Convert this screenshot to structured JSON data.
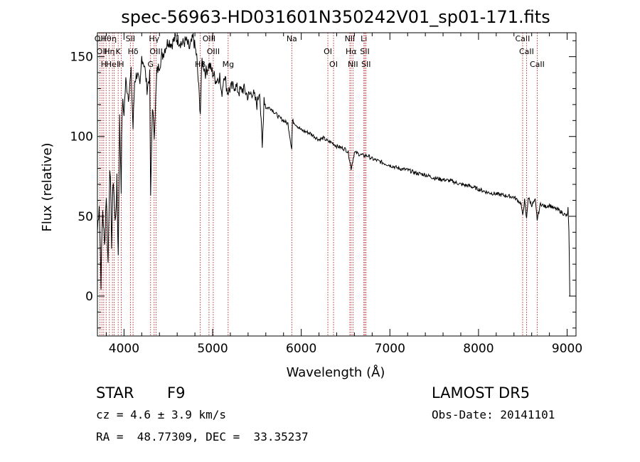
{
  "chart_data": {
    "type": "line",
    "title": "spec-56963-HD031601N350242V01_sp01-171.fits",
    "xlabel": "Wavelength (Å)",
    "ylabel": "Flux (relative)",
    "xlim": [
      3700,
      9100
    ],
    "ylim": [
      -25,
      165
    ],
    "x_ticks": [
      4000,
      5000,
      6000,
      7000,
      8000,
      9000
    ],
    "y_ticks": [
      0,
      50,
      100,
      150
    ],
    "series": [
      {
        "x": [
          3700,
          3720,
          3740,
          3760,
          3780,
          3800,
          3820,
          3840,
          3860,
          3880,
          3900,
          3920,
          3935,
          3950,
          3968,
          3980,
          4000,
          4020,
          4050,
          4080,
          4102,
          4120,
          4150,
          4180,
          4200,
          4230,
          4260,
          4290,
          4300,
          4320,
          4340,
          4370,
          4400,
          4430,
          4460,
          4500,
          4540,
          4580,
          4620,
          4660,
          4700,
          4740,
          4780,
          4820,
          4861,
          4880,
          4920,
          4960,
          5000,
          5040,
          5080,
          5100,
          5130,
          5167,
          5200,
          5250,
          5300,
          5350,
          5400,
          5450,
          5500,
          5530,
          5560,
          5580,
          5600,
          5650,
          5700,
          5750,
          5800,
          5850,
          5893,
          5900,
          5950,
          6000,
          6050,
          6100,
          6150,
          6200,
          6250,
          6300,
          6350,
          6400,
          6450,
          6500,
          6530,
          6563,
          6600,
          6650,
          6700,
          6750,
          6800,
          6850,
          6900,
          6950,
          7000,
          7100,
          7200,
          7300,
          7400,
          7500,
          7600,
          7700,
          7800,
          7900,
          8000,
          8100,
          8200,
          8300,
          8400,
          8480,
          8498,
          8520,
          8542,
          8560,
          8600,
          8640,
          8662,
          8700,
          8750,
          8800,
          8850,
          8900,
          8950,
          9000,
          9010,
          9020,
          9030
        ],
        "y": [
          40,
          60,
          10,
          55,
          30,
          65,
          20,
          85,
          35,
          75,
          45,
          70,
          25,
          110,
          70,
          120,
          115,
          135,
          125,
          140,
          105,
          135,
          140,
          130,
          150,
          145,
          130,
          138,
          60,
          120,
          100,
          140,
          145,
          150,
          155,
          160,
          158,
          162,
          160,
          158,
          160,
          155,
          162,
          150,
          115,
          148,
          140,
          145,
          140,
          135,
          138,
          125,
          140,
          128,
          130,
          132,
          128,
          130,
          125,
          128,
          120,
          130,
          92,
          125,
          118,
          118,
          115,
          112,
          110,
          108,
          92,
          110,
          107,
          104,
          103,
          102,
          100,
          98,
          99,
          97,
          96,
          94,
          93,
          92,
          90,
          80,
          90,
          89,
          88,
          88,
          86,
          85,
          84,
          83,
          82,
          80,
          79,
          77,
          76,
          74,
          73,
          72,
          70,
          69,
          67,
          65,
          64,
          63,
          62,
          58,
          50,
          60,
          48,
          62,
          57,
          60,
          48,
          58,
          56,
          57,
          55,
          54,
          52,
          50,
          55,
          40,
          0
        ]
      }
    ],
    "line_markers": [
      {
        "x": 3727,
        "label": "OII"
      },
      {
        "x": 3750,
        "label": "OII"
      },
      {
        "x": 3771,
        "label": "H"
      },
      {
        "x": 3798,
        "label": "Hθ"
      },
      {
        "x": 3835,
        "label": "Hη"
      },
      {
        "x": 3869,
        "label": "HeI"
      },
      {
        "x": 3889,
        "label": "η"
      },
      {
        "x": 3934,
        "label": "K"
      },
      {
        "x": 3968,
        "label": "H"
      },
      {
        "x": 4072,
        "label": "SII"
      },
      {
        "x": 4102,
        "label": "Hδ"
      },
      {
        "x": 4300,
        "label": "G"
      },
      {
        "x": 4340,
        "label": "Hγ"
      },
      {
        "x": 4363,
        "label": "OIII"
      },
      {
        "x": 4861,
        "label": "Hβ"
      },
      {
        "x": 4959,
        "label": "OIII"
      },
      {
        "x": 5007,
        "label": "OIII"
      },
      {
        "x": 5175,
        "label": "Mg"
      },
      {
        "x": 5893,
        "label": "Na"
      },
      {
        "x": 6300,
        "label": "OI"
      },
      {
        "x": 6364,
        "label": "OI"
      },
      {
        "x": 6548,
        "label": "NII"
      },
      {
        "x": 6563,
        "label": "Hα"
      },
      {
        "x": 6583,
        "label": "NII"
      },
      {
        "x": 6707,
        "label": "Li"
      },
      {
        "x": 6717,
        "label": "SII"
      },
      {
        "x": 6731,
        "label": "SII"
      },
      {
        "x": 8498,
        "label": "CaII"
      },
      {
        "x": 8542,
        "label": "CaII"
      },
      {
        "x": 8662,
        "label": "CaII"
      }
    ],
    "grid": false
  },
  "info": {
    "class": "STAR",
    "subclass": "F9",
    "survey": "LAMOST DR5",
    "cz": "cz = 4.6 ± 3.9 km/s",
    "obs_date": "Obs-Date: 20141101",
    "coords": "RA =  48.77309, DEC =  33.35237"
  },
  "colors": {
    "spectrum": "#000000",
    "marker_line": "#b00000",
    "axes": "#000000"
  }
}
